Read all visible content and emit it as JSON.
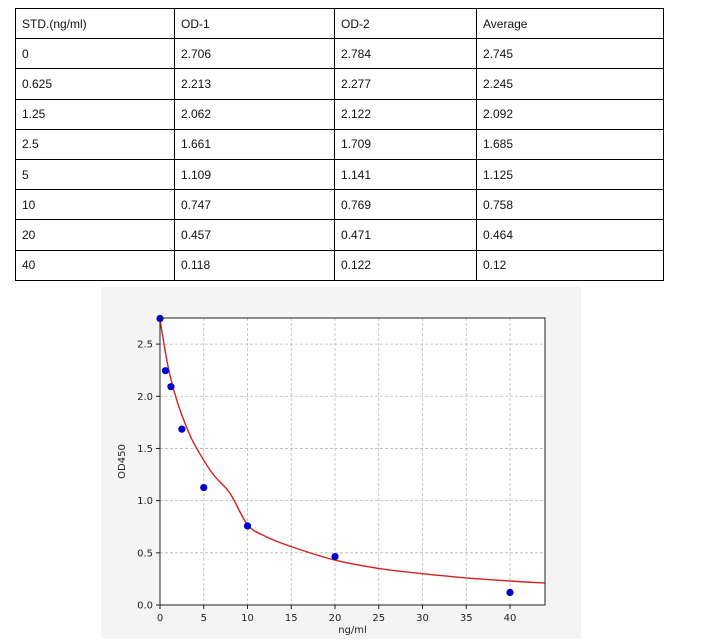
{
  "table": {
    "headers": [
      "STD.(ng/ml)",
      "OD-1",
      "OD-2",
      "Average"
    ],
    "rows": [
      [
        "0",
        "2.706",
        "2.784",
        "2.745"
      ],
      [
        "0.625",
        "2.213",
        "2.277",
        "2.245"
      ],
      [
        "1.25",
        "2.062",
        "2.122",
        "2.092"
      ],
      [
        "2.5",
        "1.661",
        "1.709",
        "1.685"
      ],
      [
        "5",
        "1.109",
        "1.141",
        "1.125"
      ],
      [
        "10",
        "0.747",
        "0.769",
        "0.758"
      ],
      [
        "20",
        "0.457",
        "0.471",
        "0.464"
      ],
      [
        "40",
        "0.118",
        "0.122",
        "0.12"
      ]
    ]
  },
  "chart_data": {
    "type": "scatter",
    "title": "",
    "xlabel": "ng/ml",
    "ylabel": "OD450",
    "xlim": [
      0,
      44
    ],
    "ylim": [
      0,
      2.75
    ],
    "xticks": [
      0,
      5,
      10,
      15,
      20,
      25,
      30,
      35,
      40
    ],
    "yticks": [
      0.0,
      0.5,
      1.0,
      1.5,
      2.0,
      2.5
    ],
    "ytick_labels": [
      "0.0",
      "0.5",
      "1.0",
      "1.5",
      "2.0",
      "2.5"
    ],
    "grid": true,
    "series": [
      {
        "kind": "points",
        "color": "#0000cc",
        "x": [
          0,
          0.625,
          1.25,
          2.5,
          5,
          10,
          20,
          40
        ],
        "y": [
          2.745,
          2.245,
          2.092,
          1.685,
          1.125,
          0.758,
          0.464,
          0.12
        ]
      },
      {
        "kind": "fitted-curve",
        "color": "#d62020",
        "x": [
          0,
          1,
          2,
          3,
          4,
          6,
          8,
          10,
          12,
          15,
          20,
          25,
          30,
          35,
          40,
          44
        ],
        "y": [
          2.73,
          2.25,
          1.94,
          1.71,
          1.53,
          1.26,
          1.07,
          0.77,
          0.66,
          0.56,
          0.43,
          0.35,
          0.3,
          0.26,
          0.23,
          0.21
        ]
      }
    ]
  }
}
